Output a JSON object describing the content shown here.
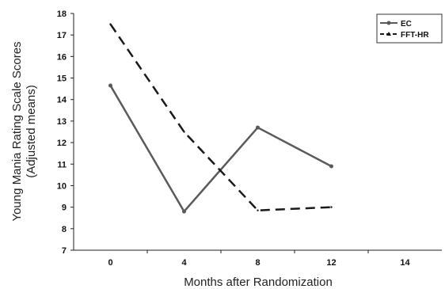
{
  "chart_data": {
    "type": "line",
    "x": [
      0,
      4,
      8,
      12
    ],
    "xticks": [
      "0",
      "4",
      "8",
      "12",
      "14"
    ],
    "yticks": [
      "7",
      "8",
      "9",
      "10",
      "11",
      "12",
      "13",
      "14",
      "15",
      "16",
      "17",
      "18"
    ],
    "xlabel": "Months after Randomization",
    "ylabel_line1": "Young Mania Rating Scale Scores",
    "ylabel_line2": "(Adjusted means)",
    "ylim": [
      7,
      18
    ],
    "grid": false,
    "legend_position": "top-right",
    "series": [
      {
        "name": "EC",
        "values": [
          14.65,
          8.8,
          12.7,
          10.9
        ],
        "style": "solid",
        "marker": "circle",
        "color": "#5a5a5a"
      },
      {
        "name": "FFT-HR",
        "values": [
          17.5,
          12.5,
          8.85,
          9.0
        ],
        "style": "dashed",
        "marker": "triangle",
        "color": "#1a1a1a"
      }
    ]
  }
}
